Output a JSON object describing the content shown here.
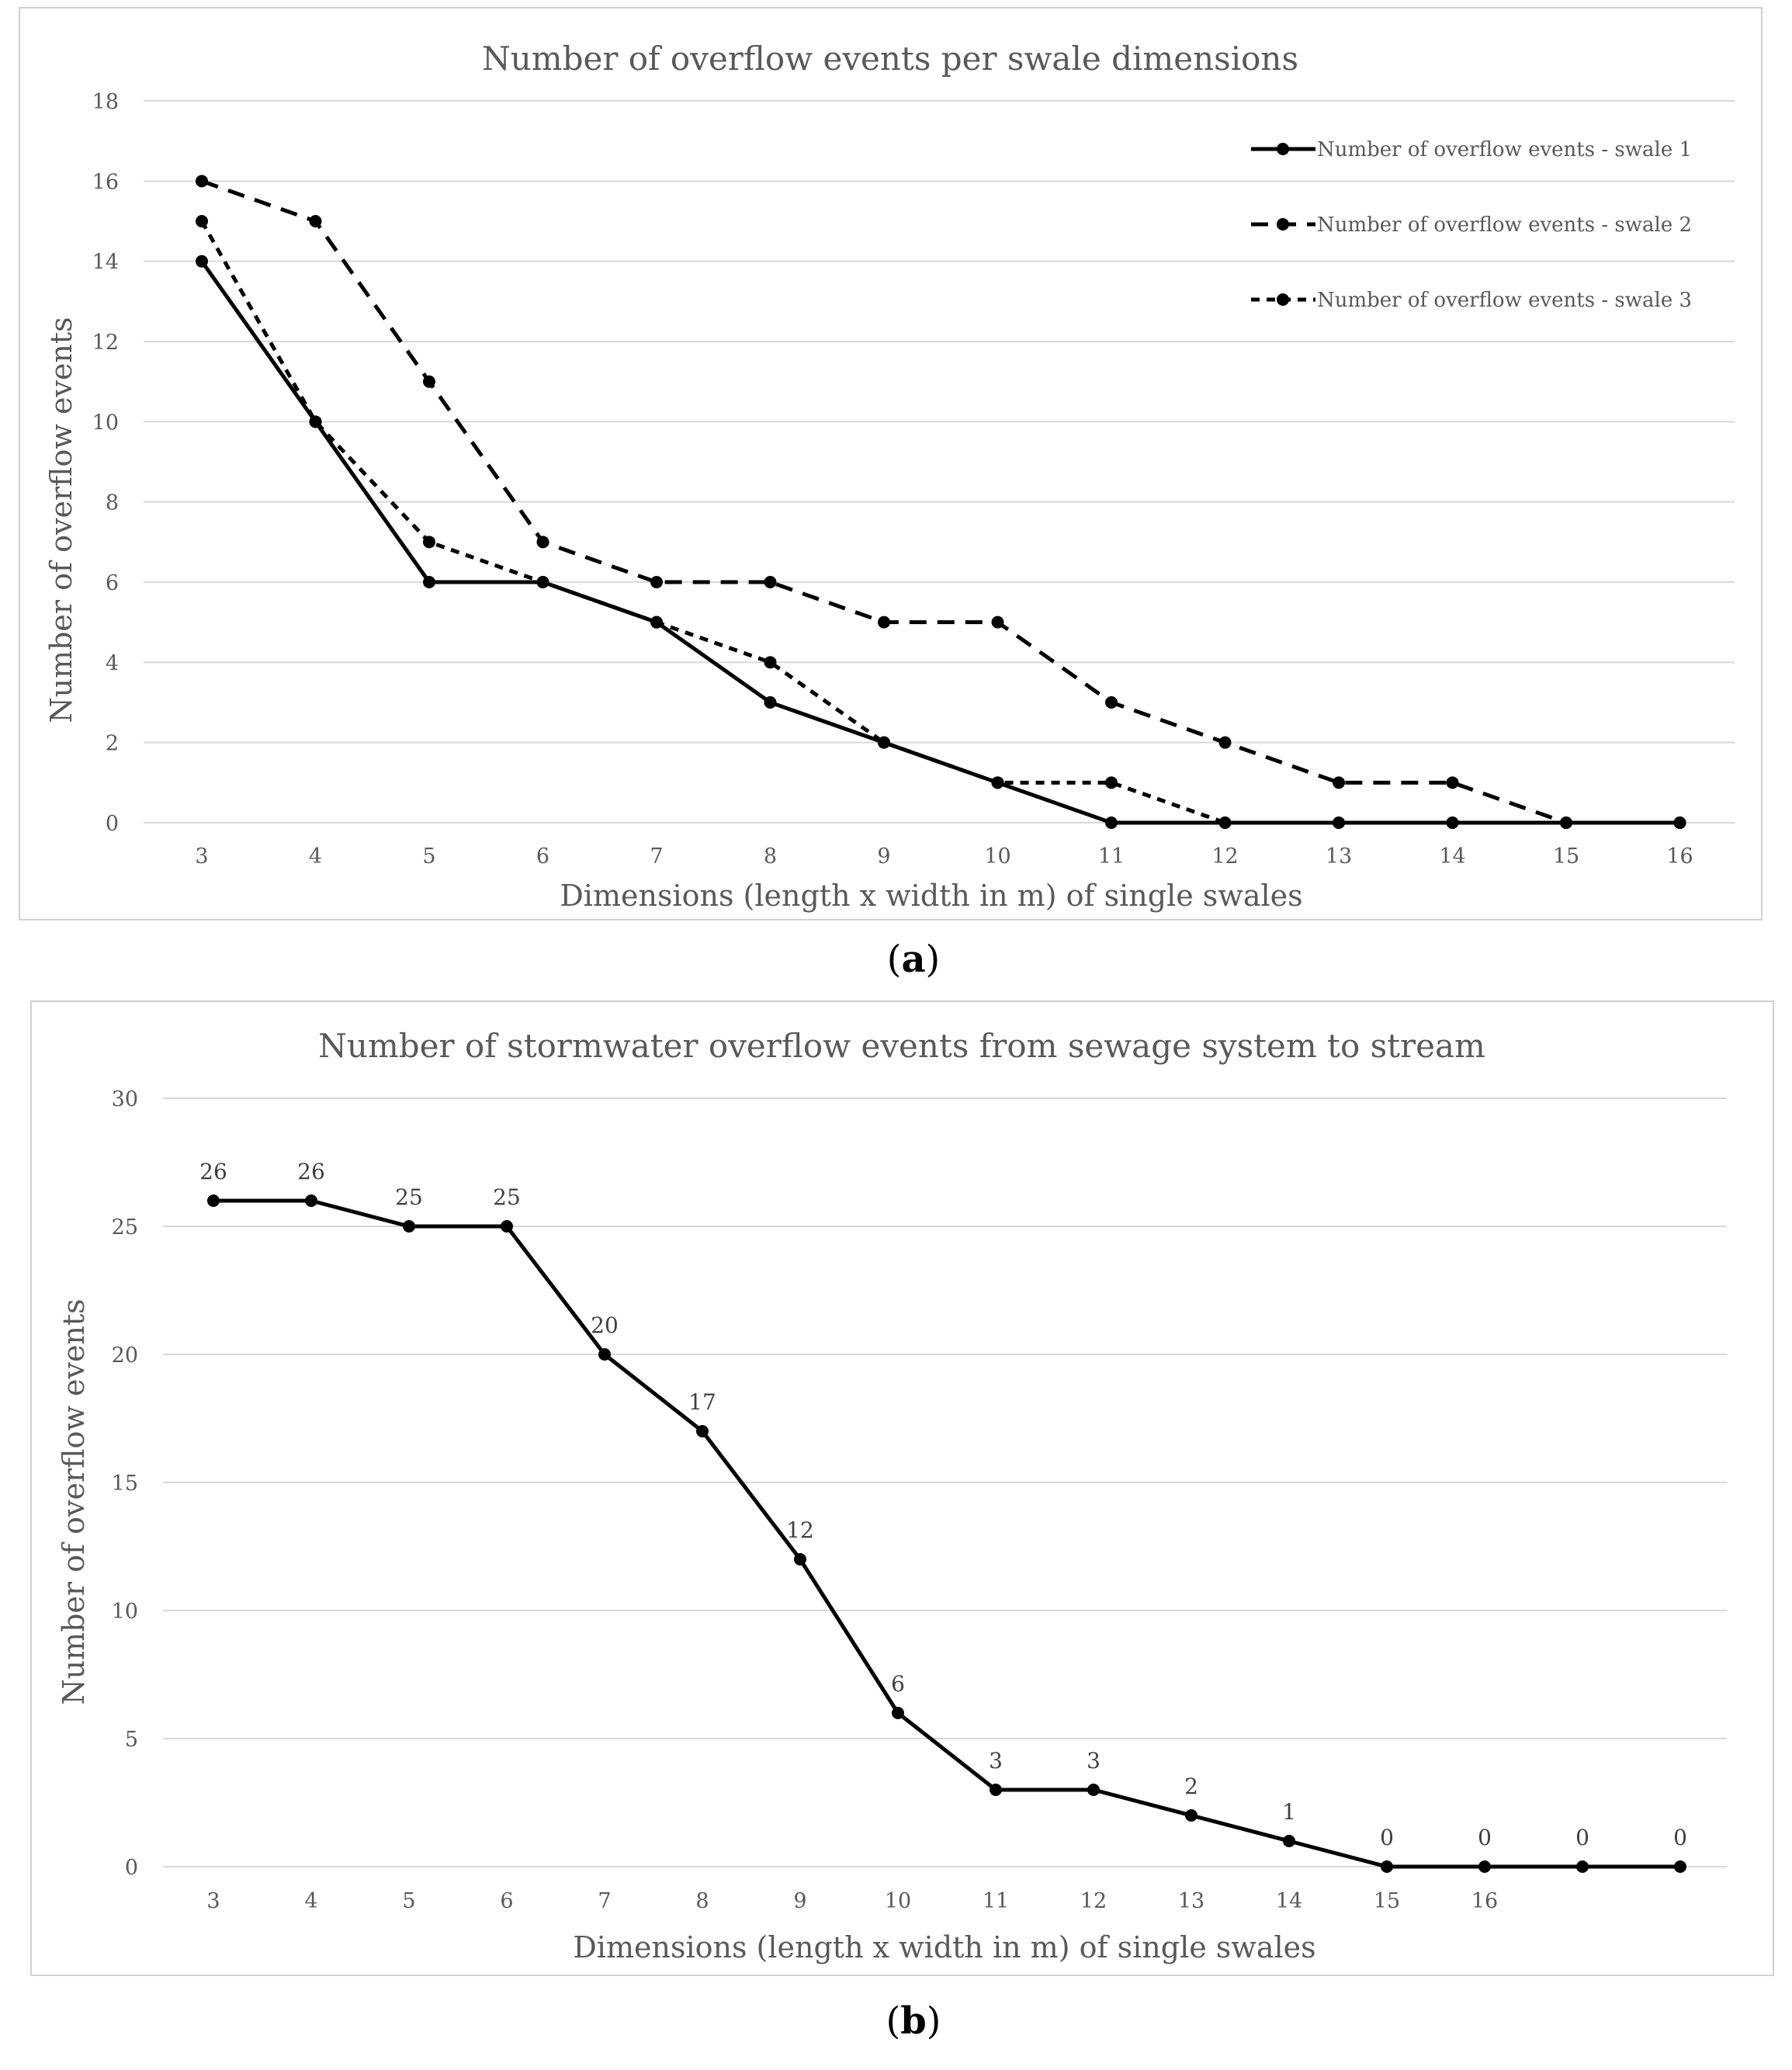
{
  "figure": {
    "caption_a": "a",
    "caption_b": "b"
  },
  "chart_data": [
    {
      "type": "line",
      "title": "Number of overflow events per swale dimensions",
      "xlabel": "Dimensions (length x width in m) of single swales",
      "ylabel": "Number of overflow events",
      "categories": [
        "3",
        "4",
        "5",
        "6",
        "7",
        "8",
        "9",
        "10",
        "11",
        "12",
        "13",
        "14",
        "15",
        "16"
      ],
      "ylim": [
        0,
        18
      ],
      "yticks": [
        "0",
        "2",
        "4",
        "6",
        "8",
        "10",
        "12",
        "14",
        "16",
        "18"
      ],
      "grid": true,
      "legend_position": "top-right",
      "series": [
        {
          "name": "Number of overflow events - swale 1",
          "style": "solid",
          "values": [
            14,
            10,
            6,
            6,
            5,
            3,
            2,
            1,
            0,
            0,
            0,
            0,
            0,
            0
          ]
        },
        {
          "name": "Number of overflow events - swale 2",
          "style": "dashed",
          "values": [
            16,
            15,
            11,
            7,
            6,
            6,
            5,
            5,
            3,
            2,
            1,
            1,
            0,
            0
          ]
        },
        {
          "name": "Number of overflow events - swale 3",
          "style": "short-dashed",
          "values": [
            15,
            10,
            7,
            6,
            5,
            4,
            2,
            1,
            1,
            0,
            0,
            0,
            0,
            0
          ]
        }
      ]
    },
    {
      "type": "line",
      "title": "Number of stormwater overflow events from sewage system to stream",
      "xlabel": "Dimensions (length x width in m) of single swales",
      "ylabel": "Number of overflow events",
      "categories": [
        "3",
        "4",
        "5",
        "6",
        "7",
        "8",
        "9",
        "10",
        "11",
        "12",
        "13",
        "14",
        "15",
        "16",
        "",
        ""
      ],
      "ylim": [
        0,
        30
      ],
      "yticks": [
        "0",
        "5",
        "10",
        "15",
        "20",
        "25",
        "30"
      ],
      "grid": true,
      "series": [
        {
          "name": "Stormwater overflow events",
          "style": "solid",
          "values": [
            26,
            26,
            25,
            25,
            20,
            17,
            12,
            6,
            3,
            3,
            2,
            1,
            0,
            0,
            0,
            0
          ],
          "data_labels": [
            "26",
            "26",
            "25",
            "25",
            "20",
            "17",
            "12",
            "6",
            "3",
            "3",
            "2",
            "1",
            "0",
            "0",
            "0",
            "0"
          ]
        }
      ]
    }
  ]
}
